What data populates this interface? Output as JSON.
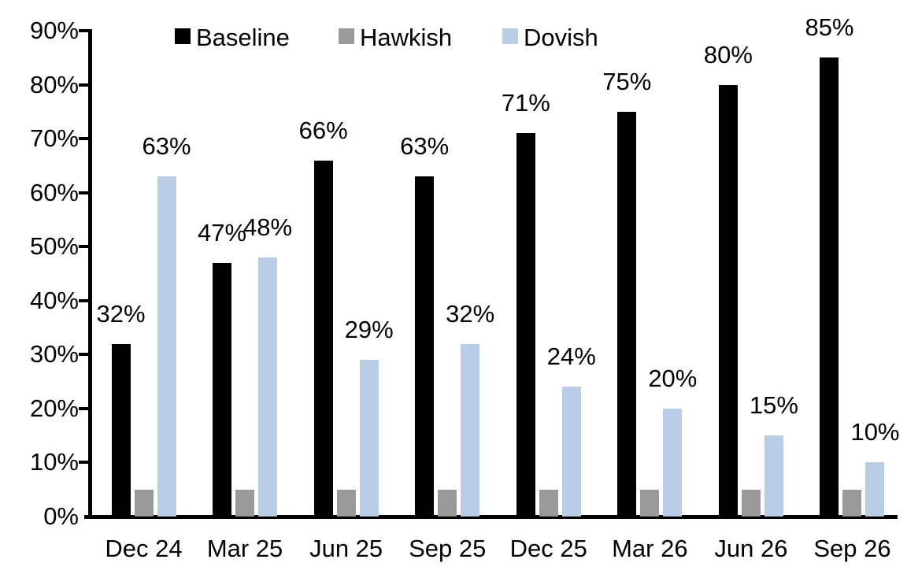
{
  "chart_data": {
    "type": "bar",
    "title": "",
    "xlabel": "",
    "ylabel": "",
    "categories": [
      "Dec 24",
      "Mar 25",
      "Jun 25",
      "Sep 25",
      "Dec 25",
      "Mar 26",
      "Jun 26",
      "Sep 26"
    ],
    "series": [
      {
        "name": "Baseline",
        "color": "#000000",
        "values": [
          32,
          47,
          66,
          63,
          71,
          75,
          80,
          85
        ],
        "data_labels": [
          "32%",
          "47%",
          "66%",
          "63%",
          "71%",
          "75%",
          "80%",
          "85%"
        ]
      },
      {
        "name": "Hawkish",
        "color": "#999999",
        "values": [
          5,
          5,
          5,
          5,
          5,
          5,
          5,
          5
        ],
        "data_labels": [
          "",
          "",
          "",
          "",
          "",
          "",
          "",
          ""
        ]
      },
      {
        "name": "Dovish",
        "color": "#B9CDE5",
        "values": [
          63,
          48,
          29,
          32,
          24,
          20,
          15,
          10
        ],
        "data_labels": [
          "63%",
          "48%",
          "29%",
          "32%",
          "24%",
          "20%",
          "15%",
          "10%"
        ]
      }
    ],
    "ylim": [
      0,
      90
    ],
    "ytick_step": 10,
    "ytick_labels": [
      "0%",
      "10%",
      "20%",
      "30%",
      "40%",
      "50%",
      "60%",
      "70%",
      "80%",
      "90%"
    ],
    "legend": {
      "position": "top",
      "entries": [
        "Baseline",
        "Hawkish",
        "Dovish"
      ]
    },
    "grid": false,
    "background_color": "#FFFFFF",
    "axis_color": "#000000"
  }
}
